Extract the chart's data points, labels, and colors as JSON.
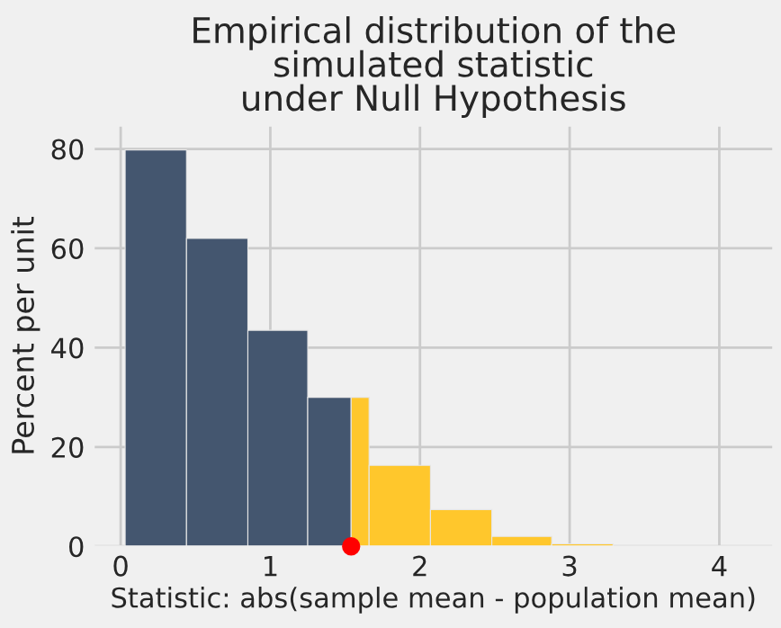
{
  "chart_data": {
    "type": "histogram",
    "title": "Empirical distribution of the\nsimulated statistic\nunder Null Hypothesis",
    "xlabel": "Statistic: abs(sample mean - population mean)",
    "ylabel": "Percent per unit",
    "series": [
      {
        "type": "histogram",
        "bins": [
          0.03,
          0.44,
          0.85,
          1.25,
          1.54,
          1.66,
          2.07,
          2.48,
          2.88,
          3.29
        ],
        "values": [
          79.8,
          62,
          43.5,
          30,
          30,
          16.3,
          7.4,
          2,
          0.5
        ],
        "colors": [
          "#44566f",
          "#44566f",
          "#44566f",
          "#44566f",
          "#ffc72c",
          "#ffc72c",
          "#ffc72c",
          "#ffc72c",
          "#ffc72c"
        ]
      },
      {
        "type": "scatter",
        "x": [
          1.54
        ],
        "values": [
          0
        ],
        "color": "#ff0000"
      }
    ],
    "xlim": [
      -0.18,
      4.36
    ],
    "xticks": [
      0,
      1,
      2,
      3,
      4
    ],
    "ylim": [
      0,
      84.7
    ],
    "yticks": [
      0,
      20,
      40,
      60,
      80
    ],
    "grid": true,
    "marker": "circle"
  }
}
